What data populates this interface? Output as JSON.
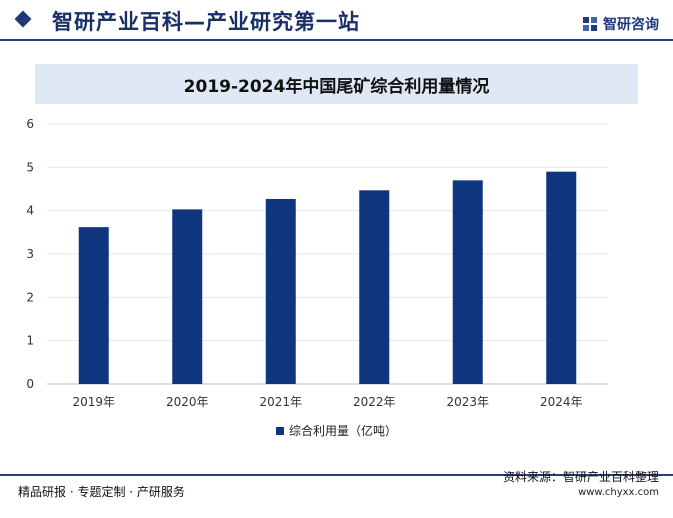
{
  "header": {
    "title": "智研产业百科—产业研究第一站",
    "brand": "智研咨询"
  },
  "footer": {
    "left": "精品研报 · 专题定制 · 产研服务",
    "source": "资料来源：智研产业百科整理",
    "url": "www.chyxx.com"
  },
  "colors": {
    "bar": "#10357f",
    "header": "#1f3a78",
    "title_band": "#dfe8f5"
  },
  "chart_data": {
    "type": "bar",
    "title": "2019-2024年中国尾矿综合利用量情况",
    "categories": [
      "2019年",
      "2020年",
      "2021年",
      "2022年",
      "2023年",
      "2024年"
    ],
    "series": [
      {
        "name": "综合利用量（亿吨）",
        "values": [
          3.62,
          4.03,
          4.27,
          4.47,
          4.7,
          4.9
        ]
      }
    ],
    "ylim": [
      0,
      6
    ],
    "yticks": [
      "0",
      "1",
      "2",
      "3",
      "4",
      "5",
      "6"
    ],
    "grid": true,
    "legend_position": "bottom"
  }
}
